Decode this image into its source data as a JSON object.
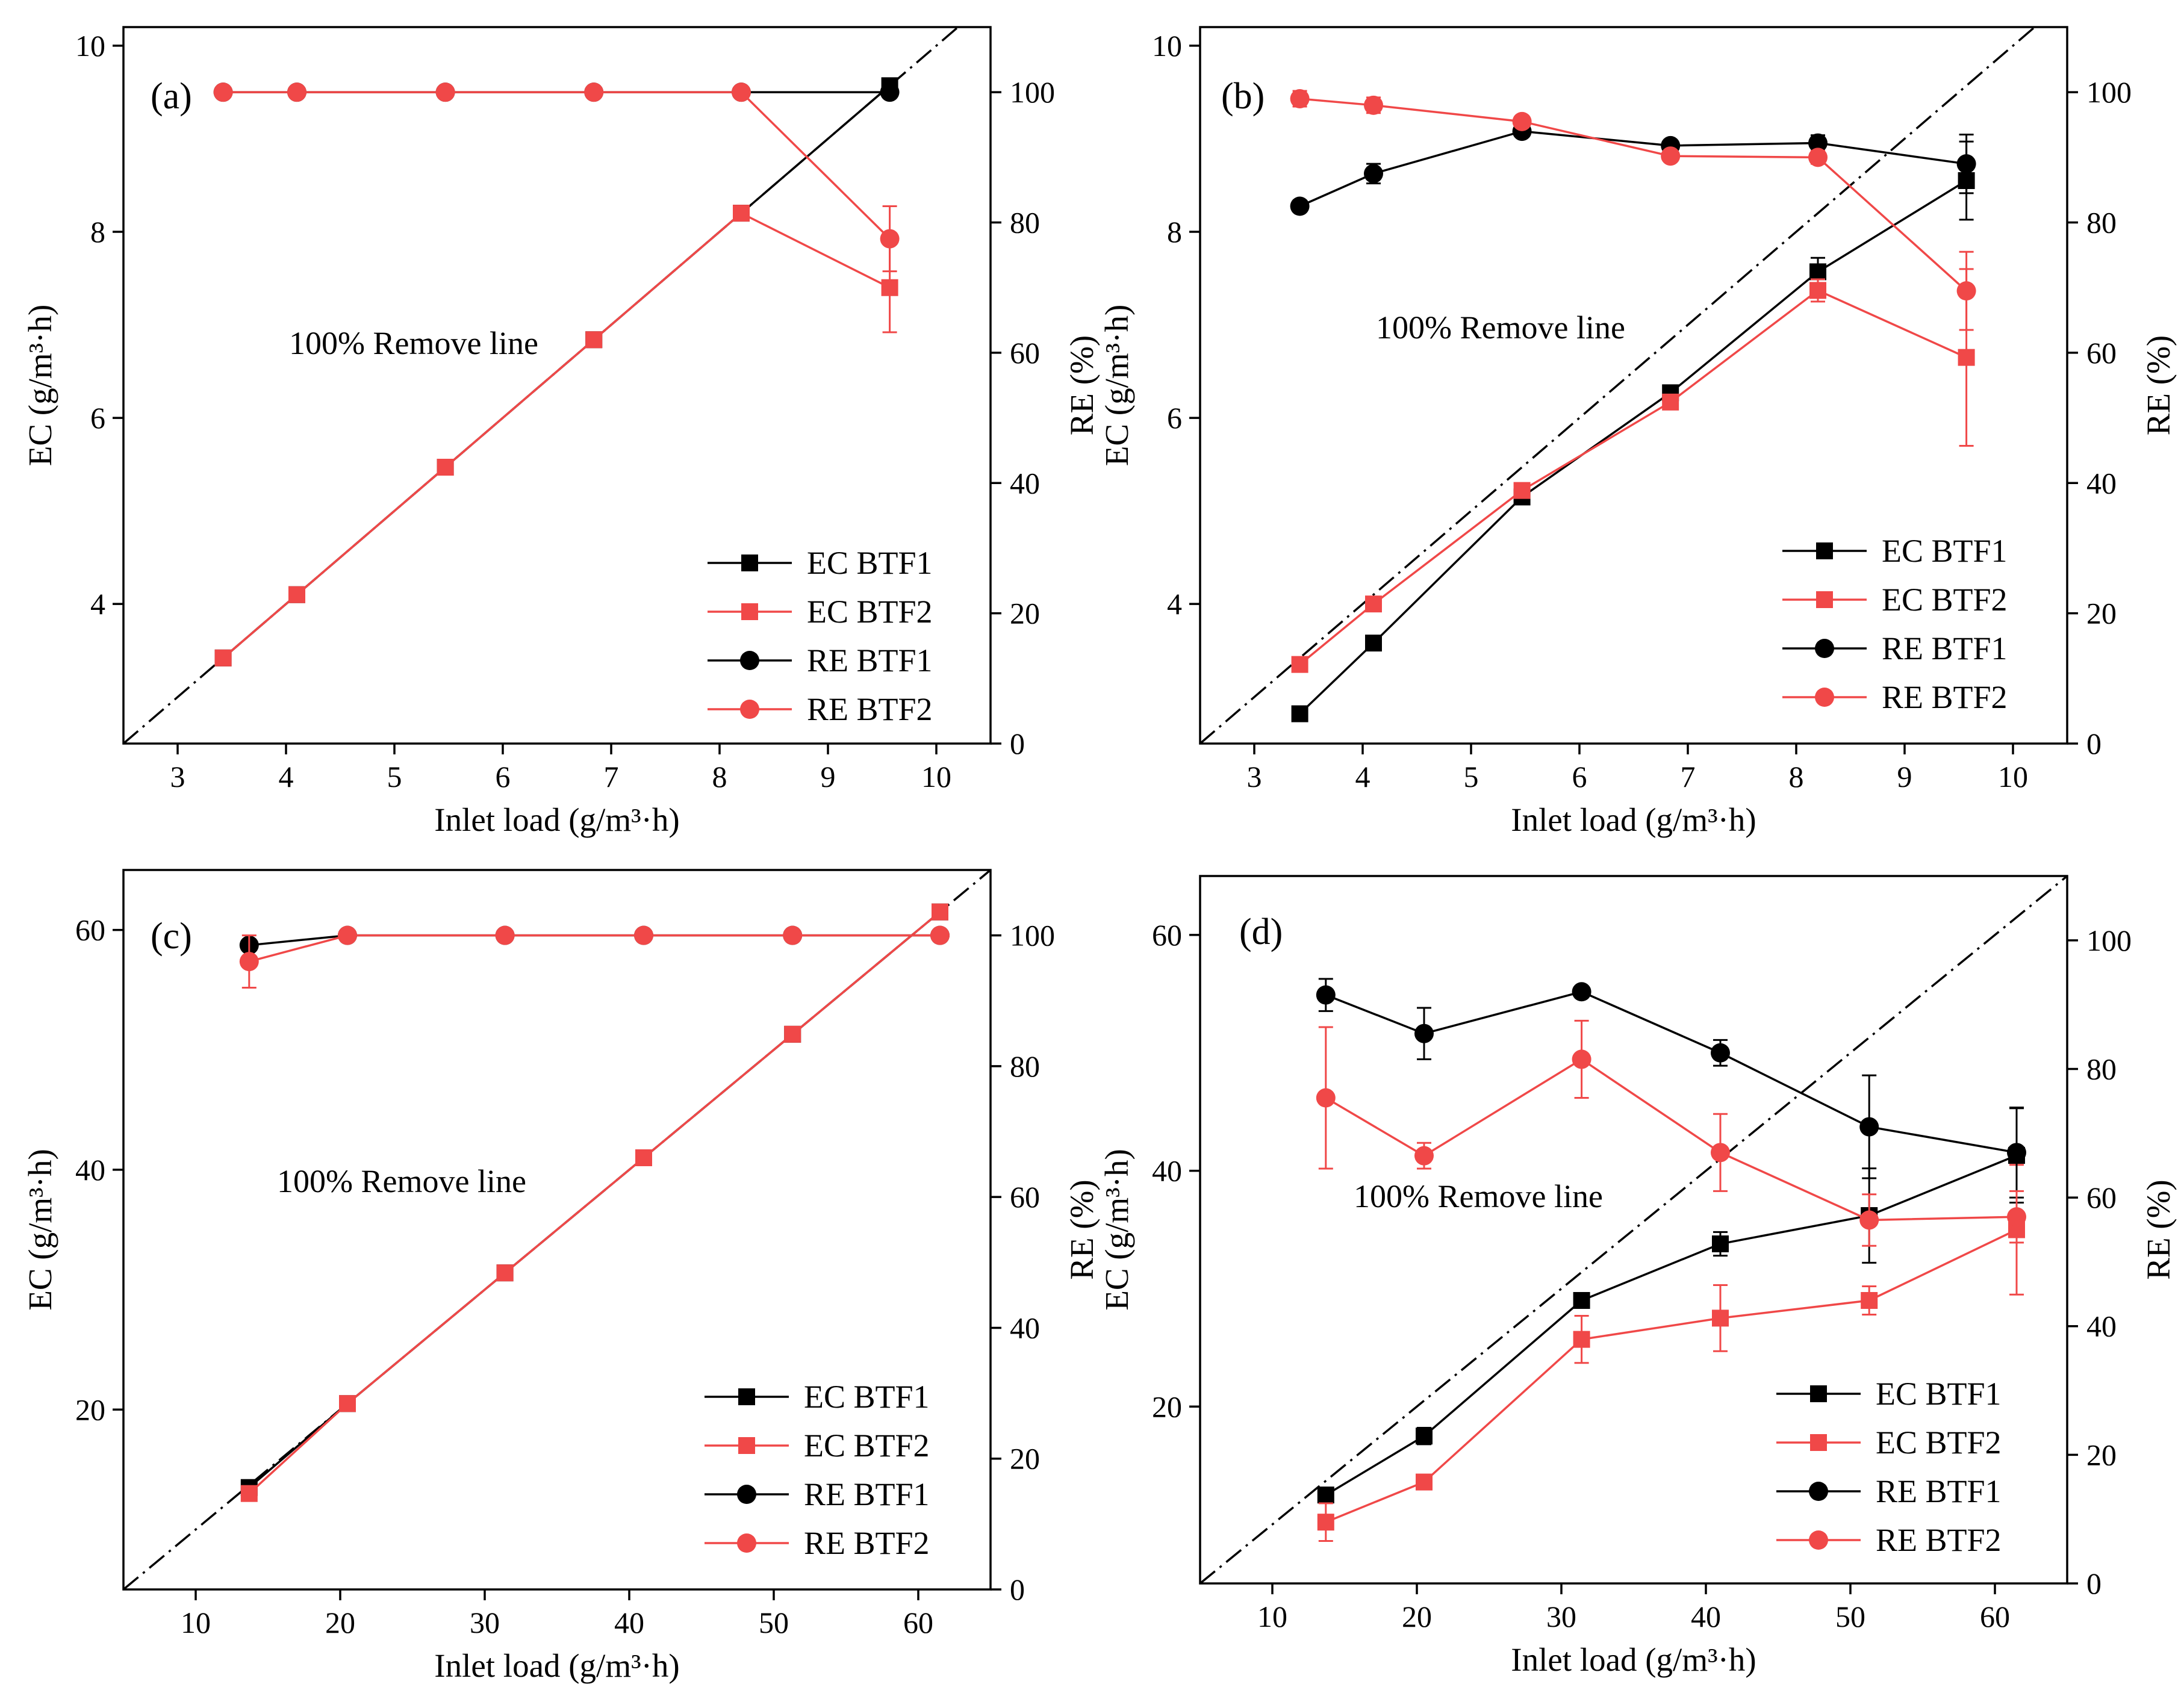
{
  "figure": {
    "series_colors": {
      "BTF1": "#000000",
      "BTF2": "#f04848"
    },
    "axis_color": "#000000"
  },
  "chart_data": [
    {
      "id": "a",
      "type": "line",
      "panel_label": "(a)",
      "xlabel": "Inlet load (g/m³·h)",
      "ylabel": "EC (g/m³·h)",
      "y2label": "RE (%)",
      "xlim": [
        2.5,
        10.5
      ],
      "ylim": [
        2.5,
        10.2
      ],
      "y2lim": [
        0,
        110
      ],
      "xticks": [
        3,
        4,
        5,
        6,
        7,
        8,
        9,
        10
      ],
      "yticks": [
        4,
        6,
        8,
        10
      ],
      "y2ticks": [
        0,
        20,
        40,
        60,
        80,
        100
      ],
      "reference_line": {
        "label": "100% Remove line"
      },
      "x": [
        3.42,
        4.1,
        5.47,
        6.84,
        8.2,
        9.57
      ],
      "series": [
        {
          "name": "EC BTF1",
          "axis": "left",
          "marker": "square",
          "color": "#000000",
          "values": [
            3.42,
            4.1,
            5.47,
            6.84,
            8.2,
            9.57
          ],
          "errors": [
            0,
            0,
            0,
            0,
            0,
            0.05
          ]
        },
        {
          "name": "EC BTF2",
          "axis": "left",
          "marker": "square",
          "color": "#f04848",
          "values": [
            3.42,
            4.1,
            5.47,
            6.84,
            8.2,
            7.4
          ],
          "errors": [
            0,
            0,
            0,
            0,
            0,
            0.48
          ]
        },
        {
          "name": "RE BTF1",
          "axis": "right",
          "marker": "circle",
          "color": "#000000",
          "values": [
            100,
            100,
            100,
            100,
            100,
            100
          ],
          "errors": [
            0,
            0,
            0,
            0,
            0,
            0
          ]
        },
        {
          "name": "RE BTF2",
          "axis": "right",
          "marker": "circle",
          "color": "#f04848",
          "values": [
            100,
            100,
            100,
            100,
            100,
            77.5
          ],
          "errors": [
            0,
            0,
            0,
            0,
            0,
            5
          ]
        }
      ],
      "legend": [
        "EC BTF1",
        "EC BTF2",
        "RE BTF1",
        "RE BTF2"
      ],
      "legend_position": "bottom-right"
    },
    {
      "id": "b",
      "type": "line",
      "panel_label": "(b)",
      "xlabel": "Inlet load (g/m³·h)",
      "ylabel": "EC (g/m³·h)",
      "y2label": "RE (%)",
      "xlim": [
        2.5,
        10.5
      ],
      "ylim": [
        2.5,
        10.2
      ],
      "y2lim": [
        0,
        110
      ],
      "xticks": [
        3,
        4,
        5,
        6,
        7,
        8,
        9,
        10
      ],
      "yticks": [
        4,
        6,
        8,
        10
      ],
      "y2ticks": [
        0,
        20,
        40,
        60,
        80,
        100
      ],
      "reference_line": {
        "label": "100% Remove line"
      },
      "x": [
        3.42,
        4.1,
        5.47,
        6.84,
        8.2,
        9.57
      ],
      "series": [
        {
          "name": "EC BTF1",
          "axis": "left",
          "marker": "square",
          "color": "#000000",
          "values": [
            2.82,
            3.58,
            5.15,
            6.27,
            7.57,
            8.55
          ],
          "errors": [
            0,
            0,
            0,
            0.05,
            0.15,
            0.42
          ]
        },
        {
          "name": "EC BTF2",
          "axis": "left",
          "marker": "square",
          "color": "#f04848",
          "values": [
            3.35,
            4.0,
            5.22,
            6.17,
            7.37,
            6.65
          ],
          "errors": [
            0,
            0,
            0,
            0.05,
            0.12,
            0.95
          ]
        },
        {
          "name": "RE BTF1",
          "axis": "right",
          "marker": "circle",
          "color": "#000000",
          "values": [
            82.5,
            87.5,
            94,
            91.8,
            92.2,
            89
          ],
          "errors": [
            0,
            1.5,
            0,
            0,
            1.2,
            4.5
          ]
        },
        {
          "name": "RE BTF2",
          "axis": "right",
          "marker": "circle",
          "color": "#f04848",
          "values": [
            99,
            98,
            95.5,
            90.2,
            90,
            69.5
          ],
          "errors": [
            1.2,
            1.2,
            0,
            0,
            1,
            6
          ]
        }
      ],
      "legend": [
        "EC BTF1",
        "EC BTF2",
        "RE BTF1",
        "RE BTF2"
      ],
      "legend_position": "bottom-right"
    },
    {
      "id": "c",
      "type": "line",
      "panel_label": "(c)",
      "xlabel": "Inlet load (g/m³·h)",
      "ylabel": "EC (g/m³·h)",
      "y2label": "RE (%)",
      "xlim": [
        5,
        65
      ],
      "ylim": [
        5,
        65
      ],
      "y2lim": [
        0,
        110
      ],
      "xticks": [
        10,
        20,
        30,
        40,
        50,
        60
      ],
      "yticks": [
        20,
        40,
        60
      ],
      "y2ticks": [
        0,
        20,
        40,
        60,
        80,
        100
      ],
      "reference_line": {
        "label": "100% Remove line"
      },
      "x": [
        13.7,
        20.5,
        31.4,
        41,
        51.3,
        61.5
      ],
      "series": [
        {
          "name": "EC BTF1",
          "axis": "left",
          "marker": "square",
          "color": "#000000",
          "values": [
            13.5,
            20.5,
            31.4,
            41,
            51.3,
            61.5
          ],
          "errors": [
            0,
            0,
            0,
            0,
            0,
            0
          ]
        },
        {
          "name": "EC BTF2",
          "axis": "left",
          "marker": "square",
          "color": "#f04848",
          "values": [
            13,
            20.5,
            31.4,
            41,
            51.3,
            61.5
          ],
          "errors": [
            0,
            0,
            0,
            0,
            0,
            0
          ]
        },
        {
          "name": "RE BTF1",
          "axis": "right",
          "marker": "circle",
          "color": "#000000",
          "values": [
            98.5,
            100,
            100,
            100,
            100,
            100
          ],
          "errors": [
            0,
            0,
            0,
            0,
            0,
            0
          ]
        },
        {
          "name": "RE BTF2",
          "axis": "right",
          "marker": "circle",
          "color": "#f04848",
          "values": [
            96,
            100,
            100,
            100,
            100,
            100
          ],
          "errors": [
            4,
            0,
            0,
            0,
            0,
            0
          ]
        }
      ],
      "legend": [
        "EC BTF1",
        "EC BTF2",
        "RE BTF1",
        "RE BTF2"
      ],
      "legend_position": "bottom-right"
    },
    {
      "id": "d",
      "type": "line",
      "panel_label": "(d)",
      "xlabel": "Inlet load (g/m³·h)",
      "ylabel": "EC (g/m³·h)",
      "y2label": "RE (%)",
      "xlim": [
        5,
        65
      ],
      "ylim": [
        5,
        65
      ],
      "y2lim": [
        0,
        110
      ],
      "xticks": [
        10,
        20,
        30,
        40,
        50,
        60
      ],
      "yticks": [
        20,
        40,
        60
      ],
      "y2ticks": [
        0,
        20,
        40,
        60,
        80,
        100
      ],
      "reference_line": {
        "label": "100% Remove line"
      },
      "x": [
        13.7,
        20.5,
        31.4,
        41,
        51.3,
        61.5
      ],
      "series": [
        {
          "name": "EC BTF1",
          "axis": "left",
          "marker": "square",
          "color": "#000000",
          "values": [
            12.5,
            17.5,
            29,
            33.8,
            36.2,
            41.3
          ],
          "errors": [
            0,
            0.7,
            0,
            1,
            4,
            4
          ]
        },
        {
          "name": "EC BTF2",
          "axis": "left",
          "marker": "square",
          "color": "#f04848",
          "values": [
            10.2,
            13.6,
            25.7,
            27.5,
            29,
            35
          ],
          "errors": [
            1.6,
            0,
            2,
            2.8,
            1.2,
            5.5
          ]
        },
        {
          "name": "RE BTF1",
          "axis": "right",
          "marker": "circle",
          "color": "#000000",
          "values": [
            91.5,
            85.5,
            92,
            82.5,
            71,
            67
          ],
          "errors": [
            2.5,
            4,
            0,
            2,
            8,
            7
          ]
        },
        {
          "name": "RE BTF2",
          "axis": "right",
          "marker": "circle",
          "color": "#f04848",
          "values": [
            75.5,
            66.5,
            81.5,
            67,
            56.5,
            57
          ],
          "errors": [
            11,
            2,
            6,
            6,
            4,
            4
          ]
        }
      ],
      "legend": [
        "EC BTF1",
        "EC BTF2",
        "RE BTF1",
        "RE BTF2"
      ],
      "legend_position": "bottom-right"
    }
  ]
}
